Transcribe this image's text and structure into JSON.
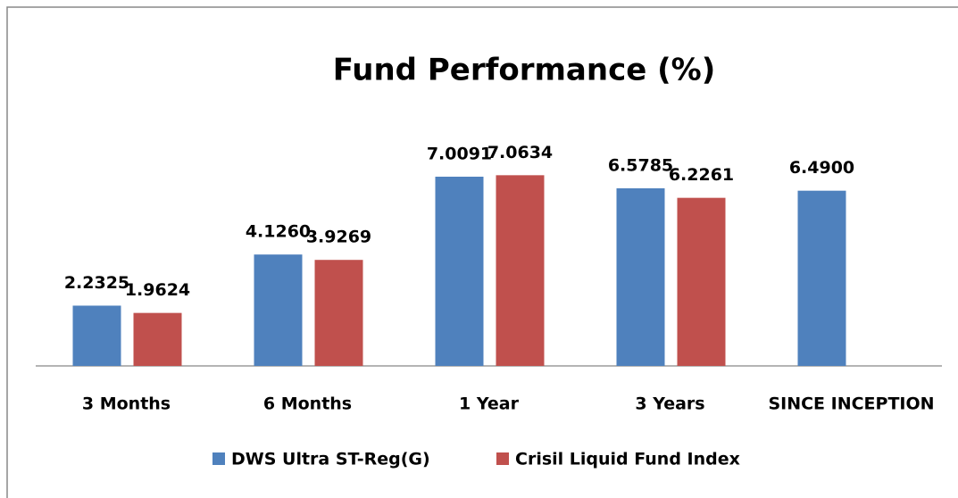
{
  "chart_data": {
    "type": "bar",
    "title": "Fund Performance (%)",
    "categories": [
      "3 Months",
      "6 Months",
      "1 Year",
      "3 Years",
      "SINCE INCEPTION"
    ],
    "series": [
      {
        "name": "DWS Ultra ST-Reg(G)",
        "color": "#4f81bd",
        "values": [
          2.2325,
          4.126,
          7.0091,
          6.5785,
          6.49
        ],
        "value_labels": [
          "2.2325",
          "4.1260",
          "7.0091",
          "6.5785",
          "6.4900"
        ]
      },
      {
        "name": "Crisil Liquid Fund Index",
        "color": "#c0504d",
        "values": [
          1.9624,
          3.9269,
          7.0634,
          6.2261,
          null
        ],
        "value_labels": [
          "1.9624",
          "3.9269",
          "7.0634",
          "6.2261",
          null
        ]
      }
    ],
    "ylim": [
      0,
      8
    ],
    "legend": "bottom"
  }
}
